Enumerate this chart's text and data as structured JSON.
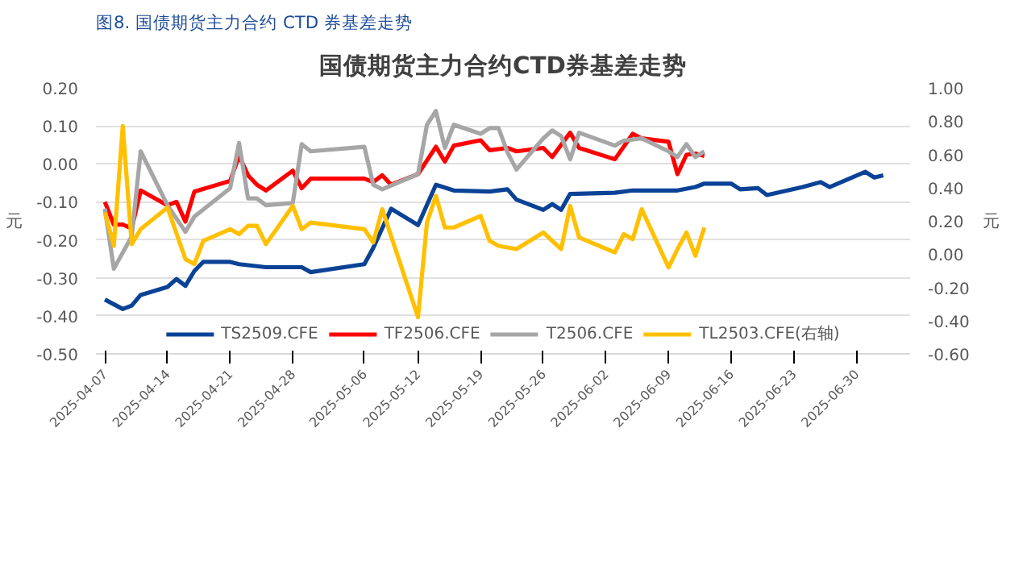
{
  "chart_data": {
    "type": "line",
    "title": "国债期货主力合约CTD券基差走势",
    "subtitle": "图8. 国债期货主力合约 CTD 券基差走势",
    "ylabel": "元",
    "y2label": "元",
    "xlim": [
      "2025-04-06",
      "2025-07-06"
    ],
    "xticks": [
      {
        "value": "2025-04-07",
        "label": "2025-04-07"
      },
      {
        "value": "2025-04-14",
        "label": "2025-04-14"
      },
      {
        "value": "2025-04-21",
        "label": "2025-04-21"
      },
      {
        "value": "2025-04-28",
        "label": "2025-04-28"
      },
      {
        "value": "2025-05-06",
        "label": "2025-05-06"
      },
      {
        "value": "2025-05-12",
        "label": "2025-05-12"
      },
      {
        "value": "2025-05-19",
        "label": "2025-05-19"
      },
      {
        "value": "2025-05-26",
        "label": "2025-05-26"
      },
      {
        "value": "2025-06-02",
        "label": "2025-06-02"
      },
      {
        "value": "2025-06-09",
        "label": "2025-06-09"
      },
      {
        "value": "2025-06-16",
        "label": "2025-06-16"
      },
      {
        "value": "2025-06-23",
        "label": "2025-06-23"
      },
      {
        "value": "2025-06-30",
        "label": "2025-06-30"
      }
    ],
    "ylim": [
      -0.5,
      0.2
    ],
    "yticks": [
      {
        "value": -0.5,
        "label": "-0.50"
      },
      {
        "value": -0.4,
        "label": "-0.40"
      },
      {
        "value": -0.3,
        "label": "-0.30"
      },
      {
        "value": -0.2,
        "label": "-0.20"
      },
      {
        "value": -0.1,
        "label": "-0.10"
      },
      {
        "value": 0,
        "label": "0.00"
      },
      {
        "value": 0.1,
        "label": "0.10"
      },
      {
        "value": 0.2,
        "label": "0.20"
      }
    ],
    "y2lim": [
      -0.6,
      1.0
    ],
    "y2ticks": [
      {
        "value": -0.6,
        "label": "-0.60"
      },
      {
        "value": -0.4,
        "label": "-0.40"
      },
      {
        "value": -0.2,
        "label": "-0.20"
      },
      {
        "value": 0,
        "label": "0.00"
      },
      {
        "value": 0.2,
        "label": "0.20"
      },
      {
        "value": 0.4,
        "label": "0.40"
      },
      {
        "value": 0.6,
        "label": "0.60"
      },
      {
        "value": 0.8,
        "label": "0.80"
      },
      {
        "value": 1.0,
        "label": "1.00"
      }
    ],
    "grid": "y",
    "legend": "bottom",
    "marker": "none",
    "line_style": "solid",
    "series": [
      {
        "name": "TS2509.CFE",
        "color": "#0a4296",
        "x": [
          "2025-04-07",
          "2025-04-09",
          "2025-04-10",
          "2025-04-11",
          "2025-04-14",
          "2025-04-15",
          "2025-04-16",
          "2025-04-17",
          "2025-04-18",
          "2025-04-21",
          "2025-04-22",
          "2025-04-25",
          "2025-04-28",
          "2025-04-29",
          "2025-04-30",
          "2025-05-06",
          "2025-05-07",
          "2025-05-09",
          "2025-05-12",
          "2025-05-14",
          "2025-05-16",
          "2025-05-20",
          "2025-05-22",
          "2025-05-23",
          "2025-05-26",
          "2025-05-27",
          "2025-05-28",
          "2025-05-29",
          "2025-06-03",
          "2025-06-05",
          "2025-06-10",
          "2025-06-12",
          "2025-06-13",
          "2025-06-16",
          "2025-06-17",
          "2025-06-19",
          "2025-06-20",
          "2025-06-24",
          "2025-06-26",
          "2025-06-27",
          "2025-07-01",
          "2025-07-02",
          "2025-07-03"
        ],
        "values": [
          -0.357,
          -0.382,
          -0.373,
          -0.345,
          -0.324,
          -0.303,
          -0.321,
          -0.282,
          -0.258,
          -0.258,
          -0.264,
          -0.272,
          -0.272,
          -0.272,
          -0.285,
          -0.264,
          -0.221,
          -0.118,
          -0.161,
          -0.055,
          -0.07,
          -0.073,
          -0.067,
          -0.094,
          -0.121,
          -0.106,
          -0.121,
          -0.079,
          -0.076,
          -0.07,
          -0.07,
          -0.061,
          -0.052,
          -0.052,
          -0.067,
          -0.064,
          -0.082,
          -0.061,
          -0.048,
          -0.061,
          -0.021,
          -0.036,
          -0.03
        ]
      },
      {
        "name": "TF2506.CFE",
        "color": "#ff0000",
        "x": [
          "2025-04-07",
          "2025-04-08",
          "2025-04-09",
          "2025-04-10",
          "2025-04-11",
          "2025-04-14",
          "2025-04-15",
          "2025-04-16",
          "2025-04-17",
          "2025-04-21",
          "2025-04-22",
          "2025-04-23",
          "2025-04-24",
          "2025-04-25",
          "2025-04-28",
          "2025-04-29",
          "2025-04-30",
          "2025-05-06",
          "2025-05-07",
          "2025-05-08",
          "2025-05-09",
          "2025-05-12",
          "2025-05-14",
          "2025-05-15",
          "2025-05-16",
          "2025-05-19",
          "2025-05-20",
          "2025-05-22",
          "2025-05-23",
          "2025-05-26",
          "2025-05-27",
          "2025-05-29",
          "2025-05-30",
          "2025-06-03",
          "2025-06-05",
          "2025-06-06",
          "2025-06-09",
          "2025-06-10",
          "2025-06-11",
          "2025-06-12",
          "2025-06-13"
        ],
        "values": [
          -0.1,
          -0.16,
          -0.16,
          -0.17,
          -0.07,
          -0.109,
          -0.1,
          -0.152,
          -0.073,
          -0.045,
          0.021,
          -0.03,
          -0.055,
          -0.07,
          -0.018,
          -0.064,
          -0.039,
          -0.039,
          -0.048,
          -0.03,
          -0.055,
          -0.027,
          0.045,
          0.006,
          0.048,
          0.062,
          0.036,
          0.042,
          0.033,
          0.042,
          0.018,
          0.082,
          0.042,
          0.012,
          0.079,
          0.067,
          0.058,
          -0.027,
          0.024,
          0.027,
          0.021
        ]
      },
      {
        "name": "T2506.CFE",
        "color": "#a6a6a6",
        "x": [
          "2025-04-07",
          "2025-04-08",
          "2025-04-10",
          "2025-04-11",
          "2025-04-14",
          "2025-04-16",
          "2025-04-17",
          "2025-04-21",
          "2025-04-22",
          "2025-04-23",
          "2025-04-24",
          "2025-04-25",
          "2025-04-28",
          "2025-04-29",
          "2025-04-30",
          "2025-05-06",
          "2025-05-07",
          "2025-05-08",
          "2025-05-12",
          "2025-05-13",
          "2025-05-14",
          "2025-05-15",
          "2025-05-16",
          "2025-05-19",
          "2025-05-20",
          "2025-05-21",
          "2025-05-22",
          "2025-05-23",
          "2025-05-26",
          "2025-05-27",
          "2025-05-28",
          "2025-05-29",
          "2025-05-30",
          "2025-06-03",
          "2025-06-04",
          "2025-06-06",
          "2025-06-09",
          "2025-06-10",
          "2025-06-11",
          "2025-06-12",
          "2025-06-13"
        ],
        "values": [
          -0.118,
          -0.276,
          -0.191,
          0.033,
          -0.109,
          -0.179,
          -0.139,
          -0.064,
          0.055,
          -0.091,
          -0.091,
          -0.109,
          -0.103,
          0.052,
          0.033,
          0.045,
          -0.055,
          -0.067,
          -0.027,
          0.103,
          0.139,
          0.042,
          0.103,
          0.079,
          0.094,
          0.094,
          0.03,
          -0.015,
          0.067,
          0.088,
          0.073,
          0.012,
          0.082,
          0.048,
          0.061,
          0.067,
          0.033,
          0.018,
          0.052,
          0.018,
          0.033
        ]
      },
      {
        "name": "TL2503.CFE(右轴)",
        "color": "#ffc000",
        "axis": "y2",
        "x": [
          "2025-04-07",
          "2025-04-08",
          "2025-04-09",
          "2025-04-10",
          "2025-04-11",
          "2025-04-14",
          "2025-04-16",
          "2025-04-17",
          "2025-04-18",
          "2025-04-21",
          "2025-04-22",
          "2025-04-23",
          "2025-04-24",
          "2025-04-25",
          "2025-04-28",
          "2025-04-29",
          "2025-04-30",
          "2025-05-06",
          "2025-05-07",
          "2025-05-08",
          "2025-05-12",
          "2025-05-13",
          "2025-05-14",
          "2025-05-15",
          "2025-05-16",
          "2025-05-19",
          "2025-05-20",
          "2025-05-21",
          "2025-05-23",
          "2025-05-26",
          "2025-05-27",
          "2025-05-28",
          "2025-05-29",
          "2025-05-30",
          "2025-06-03",
          "2025-06-04",
          "2025-06-05",
          "2025-06-06",
          "2025-06-09",
          "2025-06-10",
          "2025-06-11",
          "2025-06-12",
          "2025-06-13"
        ],
        "values": [
          0.25,
          0.05,
          0.77,
          0.06,
          0.15,
          0.28,
          -0.03,
          -0.06,
          0.08,
          0.15,
          0.12,
          0.17,
          0.17,
          0.06,
          0.29,
          0.15,
          0.19,
          0.15,
          0.07,
          0.27,
          -0.38,
          0.19,
          0.35,
          0.16,
          0.16,
          0.23,
          0.08,
          0.05,
          0.03,
          0.13,
          0.08,
          0.03,
          0.29,
          0.1,
          0.01,
          0.12,
          0.09,
          0.27,
          -0.08,
          0.03,
          0.13,
          -0.01,
          0.16
        ]
      }
    ]
  }
}
